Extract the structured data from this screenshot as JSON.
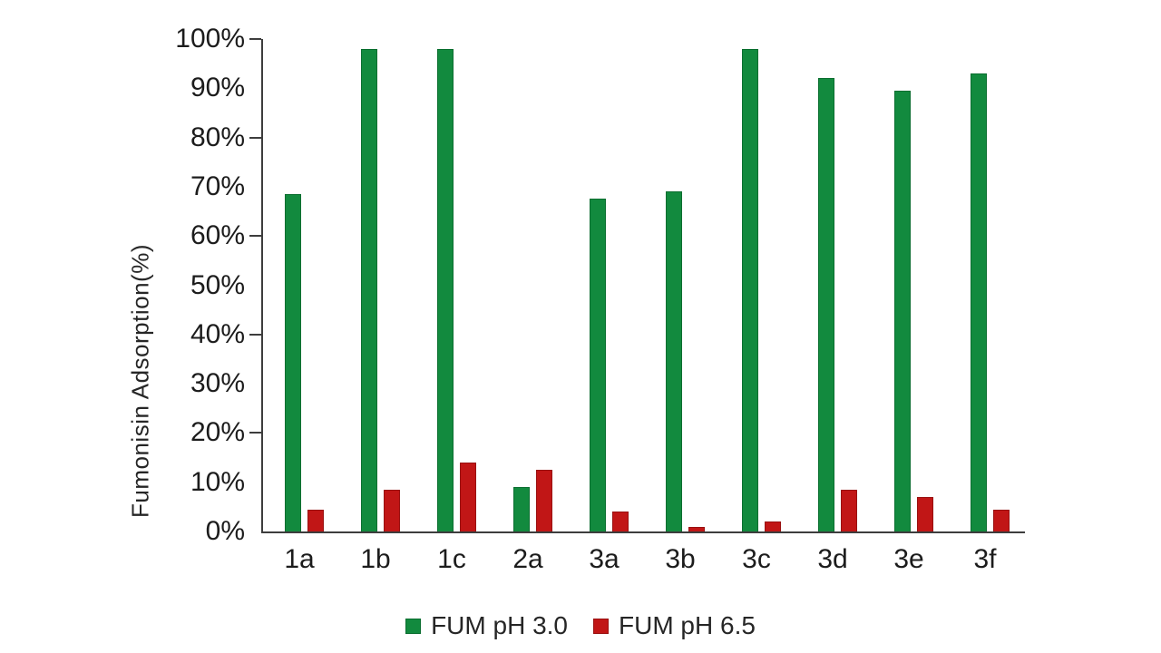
{
  "chart_data": {
    "type": "bar",
    "title": "",
    "categories": [
      "1a",
      "1b",
      "1c",
      "2a",
      "3a",
      "3b",
      "3c",
      "3d",
      "3e",
      "3f"
    ],
    "series": [
      {
        "name": "FUM pH 3.0",
        "color": "#128a3e",
        "border_color": "#0b6e30",
        "values": [
          68.5,
          98,
          98,
          9,
          67.5,
          69,
          98,
          92,
          89.5,
          93
        ]
      },
      {
        "name": "FUM pH 6.5",
        "color": "#c11616",
        "border_color": "#991111",
        "values": [
          4.5,
          8.5,
          14,
          12.5,
          4,
          1,
          2,
          8.5,
          7,
          4.5
        ]
      }
    ],
    "xlabel": "",
    "ylabel": "Fumonisin Adsorption(%)",
    "ylim": [
      0,
      100
    ],
    "y_tick_labels": [
      "0%",
      "10%",
      "20%",
      "30%",
      "40%",
      "50%",
      "60%",
      "70%",
      "80%",
      "90%",
      "100%"
    ],
    "y_tick_label_step": 10,
    "y_tick_mark_step": 20,
    "grid": false,
    "legend_position": "bottom",
    "axis_color": "#3d3d3d"
  }
}
